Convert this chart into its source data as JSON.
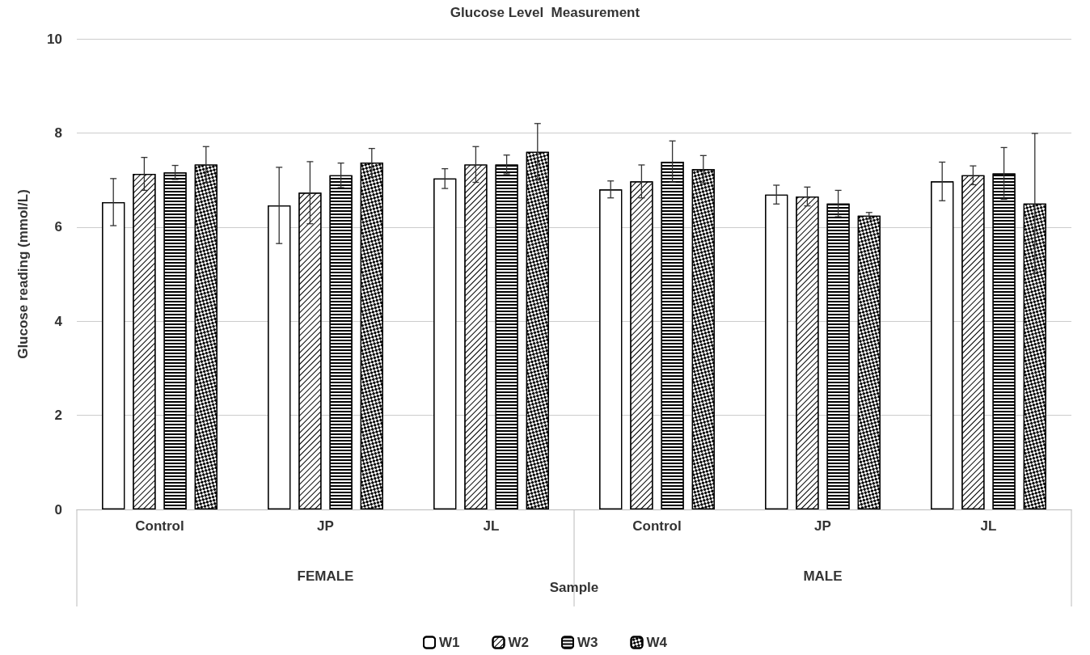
{
  "chart_data": {
    "type": "bar",
    "title": "Glucose Level  Measurement",
    "xlabel": "Sample",
    "ylabel": "Glucose reading (mmol/L)",
    "categories": [
      "Control",
      "JP",
      "JL",
      "Control",
      "JP",
      "JL"
    ],
    "annotations": [
      "FEMALE",
      "MALE"
    ],
    "series": [
      {
        "name": "W1",
        "color": "#ffffff",
        "values": [
          6.53,
          6.46,
          7.03,
          6.8,
          6.69,
          6.97
        ],
        "errors": [
          0.5,
          0.81,
          0.21,
          0.18,
          0.2,
          0.41
        ]
      },
      {
        "name": "W2",
        "color": "#ffffff",
        "values": [
          7.13,
          6.73,
          7.33,
          6.97,
          6.65,
          7.1
        ],
        "errors": [
          0.35,
          0.66,
          0.38,
          0.35,
          0.2,
          0.2
        ]
      },
      {
        "name": "W3",
        "color": "#ffffff",
        "values": [
          7.16,
          7.1,
          7.33,
          7.39,
          6.5,
          7.14
        ],
        "errors": [
          0.15,
          0.26,
          0.2,
          0.44,
          0.28,
          0.55
        ]
      },
      {
        "name": "W4",
        "color": "#ffffff",
        "values": [
          7.33,
          7.37,
          7.6,
          7.23,
          6.24,
          6.5
        ],
        "errors": [
          0.38,
          0.3,
          0.6,
          0.29,
          0.07,
          1.49
        ]
      }
    ],
    "ylim": [
      0,
      10
    ],
    "yticks": [
      0,
      2,
      4,
      6,
      8,
      10
    ],
    "grid": "y",
    "legend": "bottom"
  }
}
